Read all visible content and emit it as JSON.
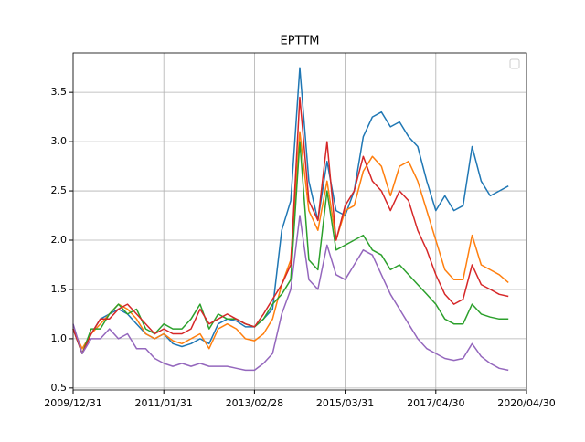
{
  "chart_data": {
    "type": "line",
    "title": "EPTTM",
    "xlim": [
      0,
      50
    ],
    "xticks": [
      {
        "value": 0,
        "label": "2009/12/31"
      },
      {
        "value": 10,
        "label": "2011/01/31"
      },
      {
        "value": 20,
        "label": "2013/02/28"
      },
      {
        "value": 30,
        "label": "2015/03/31"
      },
      {
        "value": 40,
        "label": "2017/04/30"
      },
      {
        "value": 50,
        "label": "2020/04/30"
      }
    ],
    "ylim": [
      0.48,
      3.9
    ],
    "yticks": [
      0.5,
      {
        "value": 1,
        "label": "1.0"
      },
      1.5,
      {
        "value": 2,
        "label": "2.0"
      },
      2.5,
      {
        "value": 3,
        "label": "3.0"
      },
      3.5
    ],
    "grid": true,
    "legend": "upper right",
    "series": [
      {
        "color": "#1f77b4",
        "values": [
          1.1,
          0.85,
          1.05,
          1.2,
          1.25,
          1.3,
          1.25,
          1.15,
          1.05,
          1.0,
          1.05,
          0.95,
          0.92,
          0.95,
          1.0,
          0.95,
          1.15,
          1.2,
          1.18,
          1.12,
          1.12,
          1.2,
          1.3,
          2.1,
          2.4,
          3.75,
          2.6,
          2.2,
          2.8,
          2.3,
          2.25,
          2.5,
          3.05,
          3.25,
          3.3,
          3.15,
          3.2,
          3.05,
          2.95,
          2.6,
          2.3,
          2.45,
          2.3,
          2.35,
          2.95,
          2.6,
          2.45,
          2.5,
          2.55
        ]
      },
      {
        "color": "#ff7f0e",
        "values": [
          1.1,
          0.9,
          1.05,
          1.15,
          1.25,
          1.35,
          1.3,
          1.2,
          1.05,
          1.0,
          1.05,
          0.98,
          0.95,
          1.0,
          1.05,
          0.9,
          1.1,
          1.15,
          1.1,
          1.0,
          0.98,
          1.05,
          1.2,
          1.55,
          1.8,
          3.1,
          2.3,
          2.1,
          2.6,
          2.0,
          2.3,
          2.35,
          2.7,
          2.85,
          2.75,
          2.45,
          2.75,
          2.8,
          2.6,
          2.3,
          2.0,
          1.7,
          1.6,
          1.6,
          2.05,
          1.75,
          1.7,
          1.65,
          1.57
        ]
      },
      {
        "color": "#2ca02c",
        "values": [
          1.1,
          0.85,
          1.1,
          1.1,
          1.25,
          1.35,
          1.25,
          1.3,
          1.1,
          1.05,
          1.15,
          1.1,
          1.1,
          1.2,
          1.35,
          1.1,
          1.25,
          1.2,
          1.2,
          1.15,
          1.12,
          1.2,
          1.35,
          1.45,
          1.6,
          3.0,
          1.8,
          1.7,
          2.5,
          1.9,
          1.95,
          2.0,
          2.05,
          1.9,
          1.85,
          1.7,
          1.75,
          1.65,
          1.55,
          1.45,
          1.35,
          1.2,
          1.15,
          1.15,
          1.35,
          1.25,
          1.22,
          1.2,
          1.2
        ]
      },
      {
        "color": "#d62728",
        "values": [
          1.1,
          0.85,
          1.05,
          1.2,
          1.2,
          1.3,
          1.35,
          1.25,
          1.15,
          1.05,
          1.1,
          1.05,
          1.05,
          1.1,
          1.3,
          1.15,
          1.2,
          1.25,
          1.2,
          1.15,
          1.12,
          1.25,
          1.4,
          1.55,
          1.75,
          3.45,
          2.4,
          2.2,
          3.0,
          2.0,
          2.35,
          2.5,
          2.85,
          2.6,
          2.5,
          2.3,
          2.5,
          2.4,
          2.1,
          1.9,
          1.65,
          1.45,
          1.35,
          1.4,
          1.75,
          1.55,
          1.5,
          1.45,
          1.43
        ]
      },
      {
        "color": "#9467bd",
        "values": [
          1.15,
          0.85,
          1.0,
          1.0,
          1.1,
          1.0,
          1.05,
          0.9,
          0.9,
          0.8,
          0.75,
          0.72,
          0.75,
          0.72,
          0.75,
          0.72,
          0.72,
          0.72,
          0.7,
          0.68,
          0.68,
          0.75,
          0.85,
          1.25,
          1.5,
          2.25,
          1.6,
          1.5,
          1.95,
          1.65,
          1.6,
          1.75,
          1.9,
          1.85,
          1.65,
          1.45,
          1.3,
          1.15,
          1.0,
          0.9,
          0.85,
          0.8,
          0.78,
          0.8,
          0.95,
          0.82,
          0.75,
          0.7,
          0.68
        ]
      }
    ]
  }
}
